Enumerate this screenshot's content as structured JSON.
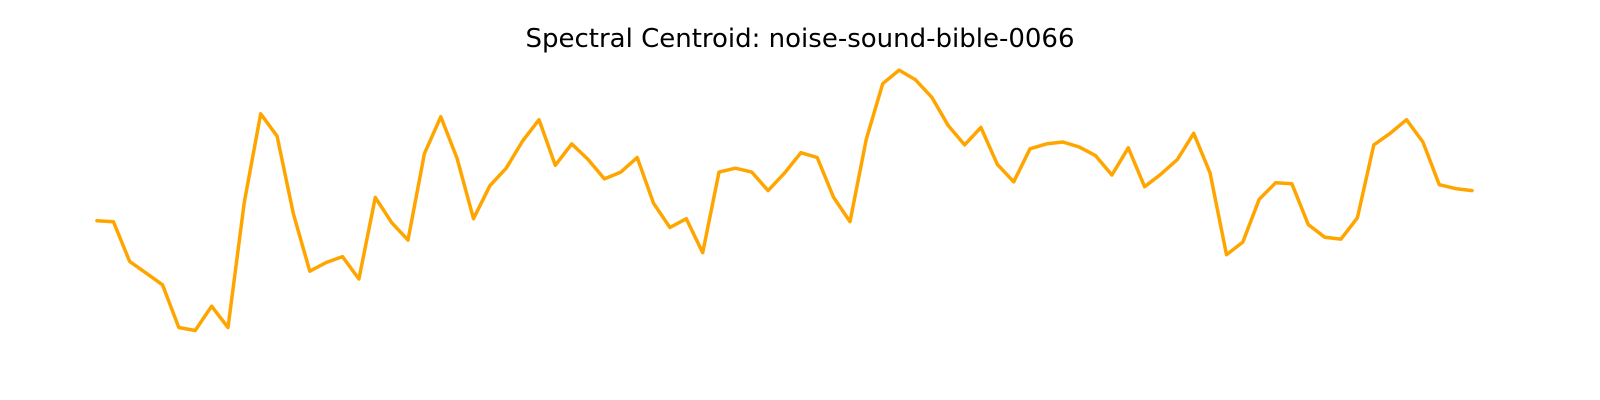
{
  "chart_data": {
    "type": "line",
    "title": "Spectral Centroid: noise-sound-bible-0066",
    "xlabel": "",
    "ylabel": "",
    "axes_visible": false,
    "grid": false,
    "line_color": "#FFA500",
    "series": [
      {
        "values": [
          164,
          163,
          122,
          110,
          98,
          54,
          51,
          76,
          54,
          183,
          274,
          251,
          171,
          112,
          121,
          127,
          104,
          188,
          162,
          144,
          233,
          271,
          228,
          166,
          200,
          218,
          246,
          268,
          221,
          243,
          227,
          207,
          214,
          229,
          182,
          157,
          166,
          131,
          214,
          218,
          214,
          195,
          213,
          234,
          229,
          188,
          163,
          248,
          305,
          319,
          309,
          291,
          262,
          242,
          260,
          222,
          204,
          238,
          243,
          245,
          240,
          231,
          211,
          239,
          199,
          212,
          227,
          254,
          213,
          129,
          142,
          186,
          203,
          202,
          160,
          147,
          145,
          167,
          242,
          254,
          268,
          245,
          201,
          197,
          195
        ]
      }
    ],
    "ylim": [
      0,
      350
    ]
  }
}
